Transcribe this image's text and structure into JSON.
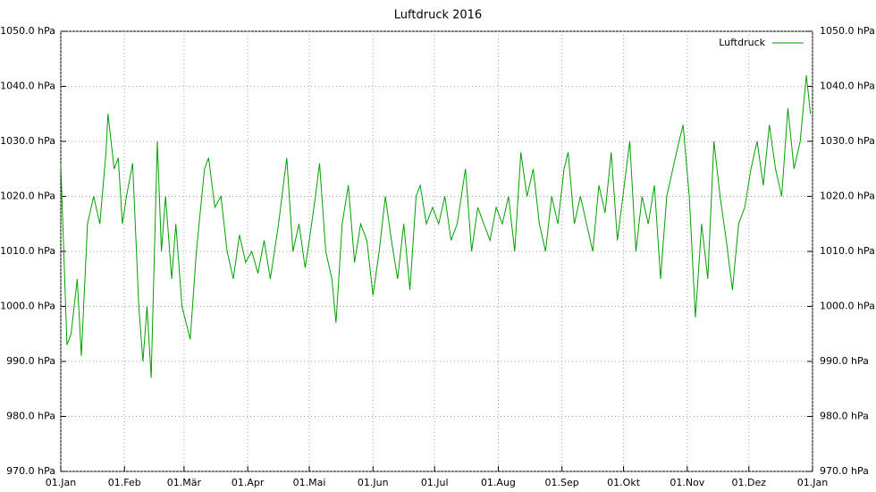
{
  "chart_data": {
    "type": "line",
    "title": "Luftdruck 2016",
    "x": [
      0,
      3,
      5,
      8,
      10,
      13,
      16,
      19,
      22,
      23,
      26,
      28,
      30,
      32,
      35,
      38,
      40,
      42,
      44,
      47,
      49,
      51,
      54,
      56,
      59,
      63,
      66,
      70,
      72,
      75,
      78,
      81,
      84,
      87,
      90,
      93,
      96,
      99,
      102,
      106,
      110,
      113,
      116,
      119,
      121,
      124,
      126,
      129,
      132,
      134,
      137,
      140,
      143,
      146,
      149,
      152,
      155,
      158,
      161,
      164,
      167,
      170,
      173,
      175,
      178,
      181,
      184,
      187,
      190,
      193,
      197,
      200,
      203,
      206,
      209,
      212,
      215,
      218,
      221,
      224,
      227,
      230,
      233,
      236,
      239,
      242,
      245,
      247,
      250,
      253,
      256,
      259,
      262,
      265,
      268,
      271,
      277,
      280,
      283,
      286,
      289,
      292,
      295,
      298,
      301,
      303,
      306,
      309,
      312,
      315,
      318,
      321,
      324,
      327,
      330,
      333,
      336,
      339,
      342,
      345,
      348,
      351,
      354,
      357,
      360,
      363,
      365
    ],
    "series": [
      {
        "name": "Luftdruck",
        "color": "#00a000",
        "values": [
          1026,
          993,
          995,
          1005,
          991,
          1015,
          1020,
          1015,
          1028,
          1035,
          1025,
          1027,
          1015,
          1020,
          1026,
          1000,
          990,
          1000,
          987,
          1030,
          1010,
          1020,
          1005,
          1015,
          1000,
          994,
          1010,
          1025,
          1027,
          1018,
          1020,
          1010,
          1005,
          1013,
          1008,
          1010,
          1006,
          1012,
          1005,
          1015,
          1027,
          1010,
          1015,
          1007,
          1012,
          1020,
          1026,
          1010,
          1005,
          997,
          1015,
          1022,
          1008,
          1015,
          1012,
          1002,
          1010,
          1020,
          1012,
          1005,
          1015,
          1003,
          1020,
          1022,
          1015,
          1018,
          1015,
          1020,
          1012,
          1015,
          1025,
          1010,
          1018,
          1015,
          1012,
          1018,
          1015,
          1020,
          1010,
          1028,
          1020,
          1025,
          1015,
          1010,
          1020,
          1015,
          1025,
          1028,
          1015,
          1020,
          1015,
          1010,
          1022,
          1017,
          1028,
          1012,
          1030,
          1010,
          1020,
          1015,
          1022,
          1005,
          1020,
          1025,
          1030,
          1033,
          1020,
          998,
          1015,
          1005,
          1030,
          1020,
          1012,
          1003,
          1015,
          1018,
          1025,
          1030,
          1022,
          1033,
          1025,
          1020,
          1036,
          1025,
          1030,
          1042,
          1035
        ]
      }
    ],
    "xlim": [
      0,
      366
    ],
    "xticks": [
      {
        "value": 0,
        "label": "01.Jan"
      },
      {
        "value": 31,
        "label": "01.Feb"
      },
      {
        "value": 60,
        "label": "01.Mär"
      },
      {
        "value": 91,
        "label": "01.Apr"
      },
      {
        "value": 121,
        "label": "01.Mai"
      },
      {
        "value": 152,
        "label": "01.Jun"
      },
      {
        "value": 182,
        "label": "01.Jul"
      },
      {
        "value": 213,
        "label": "01.Aug"
      },
      {
        "value": 244,
        "label": "01.Sep"
      },
      {
        "value": 274,
        "label": "01.Okt"
      },
      {
        "value": 305,
        "label": "01.Nov"
      },
      {
        "value": 335,
        "label": "01.Dez"
      },
      {
        "value": 366,
        "label": "01.Jan"
      }
    ],
    "ylim": [
      970,
      1050
    ],
    "yticks": [
      {
        "value": 970,
        "label": "970.0 hPa"
      },
      {
        "value": 980,
        "label": "980.0 hPa"
      },
      {
        "value": 990,
        "label": "990.0 hPa"
      },
      {
        "value": 1000,
        "label": "1000.0 hPa"
      },
      {
        "value": 1010,
        "label": "1010.0 hPa"
      },
      {
        "value": 1020,
        "label": "1020.0 hPa"
      },
      {
        "value": 1030,
        "label": "1030.0 hPa"
      },
      {
        "value": 1040,
        "label": "1040.0 hPa"
      },
      {
        "value": 1050,
        "label": "1050.0 hPa"
      }
    ],
    "grid": true,
    "legend": "top-right"
  }
}
